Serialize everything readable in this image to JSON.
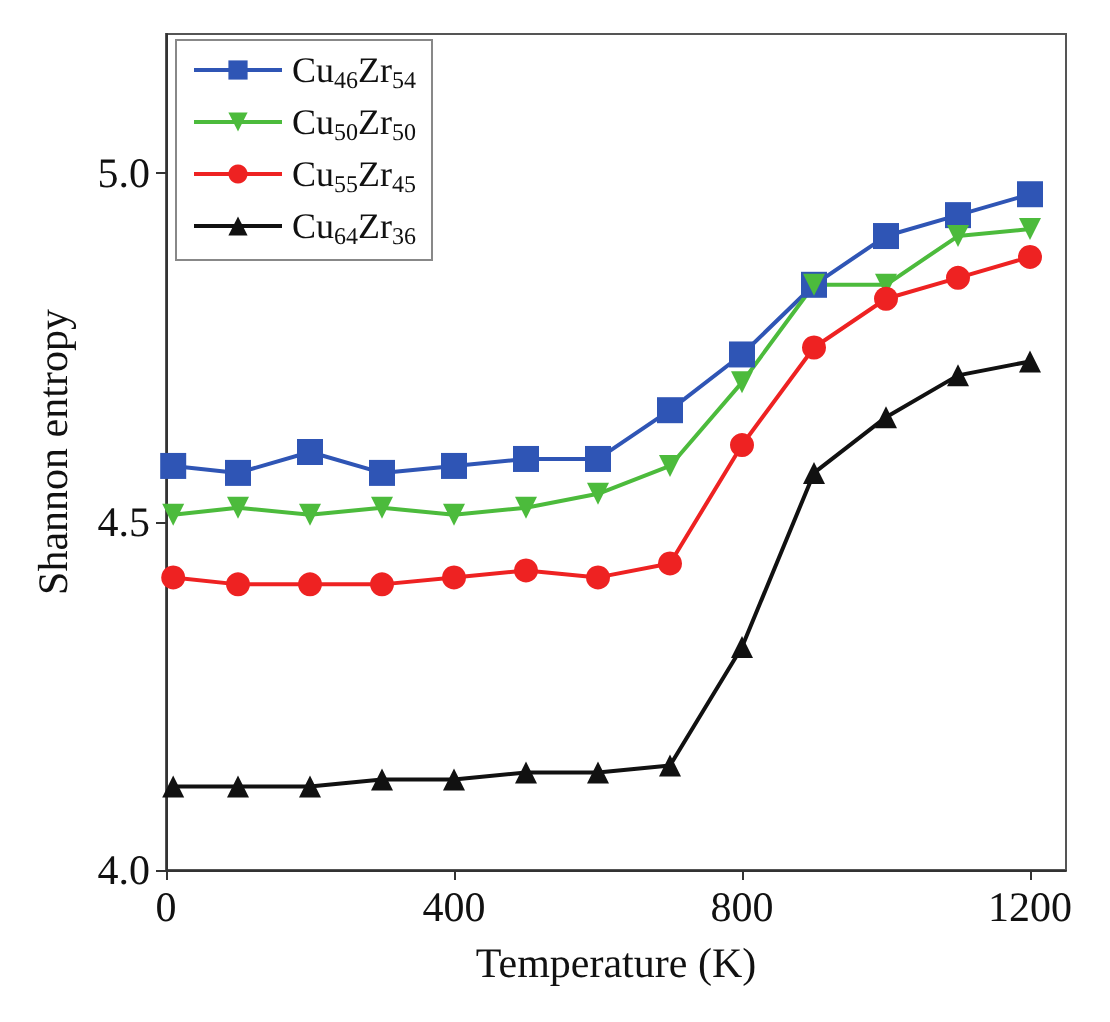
{
  "chart_data": {
    "type": "line",
    "xlabel": "Temperature (K)",
    "ylabel": "Shannon entropy",
    "x": [
      10,
      100,
      200,
      300,
      400,
      500,
      600,
      700,
      800,
      900,
      1000,
      1100,
      1200
    ],
    "xlim": [
      0,
      1250
    ],
    "xticks": [
      0,
      400,
      800,
      1200
    ],
    "ylim": [
      4.0,
      5.2
    ],
    "yticks": [
      {
        "value": 4.0,
        "label": "4.0"
      },
      {
        "value": 4.5,
        "label": "4.5"
      },
      {
        "value": 5.0,
        "label": "5.0"
      }
    ],
    "grid": false,
    "legend": "top left",
    "line_style": "solid",
    "series": [
      {
        "name": "Cu$_{46}$Zr$_{54}$",
        "color": "#2f55b5",
        "marker": "square",
        "values": [
          4.58,
          4.57,
          4.6,
          4.57,
          4.58,
          4.59,
          4.59,
          4.66,
          4.74,
          4.84,
          4.91,
          4.94,
          4.97
        ]
      },
      {
        "name": "Cu$_{50}$Zr$_{50}$",
        "color": "#4cbb3c",
        "marker": "triangle-down",
        "values": [
          4.51,
          4.52,
          4.51,
          4.52,
          4.51,
          4.52,
          4.54,
          4.58,
          4.7,
          4.84,
          4.84,
          4.91,
          4.92
        ]
      },
      {
        "name": "Cu$_{55}$Zr$_{45}$",
        "color": "#ee2222",
        "marker": "circle",
        "values": [
          4.42,
          4.41,
          4.41,
          4.41,
          4.42,
          4.43,
          4.42,
          4.44,
          4.61,
          4.75,
          4.82,
          4.85,
          4.88
        ]
      },
      {
        "name": "Cu$_{64}$Zr$_{36}$",
        "color": "#111111",
        "marker": "triangle",
        "values": [
          4.12,
          4.12,
          4.12,
          4.13,
          4.13,
          4.14,
          4.14,
          4.15,
          4.32,
          4.57,
          4.65,
          4.71,
          4.73
        ]
      }
    ]
  }
}
